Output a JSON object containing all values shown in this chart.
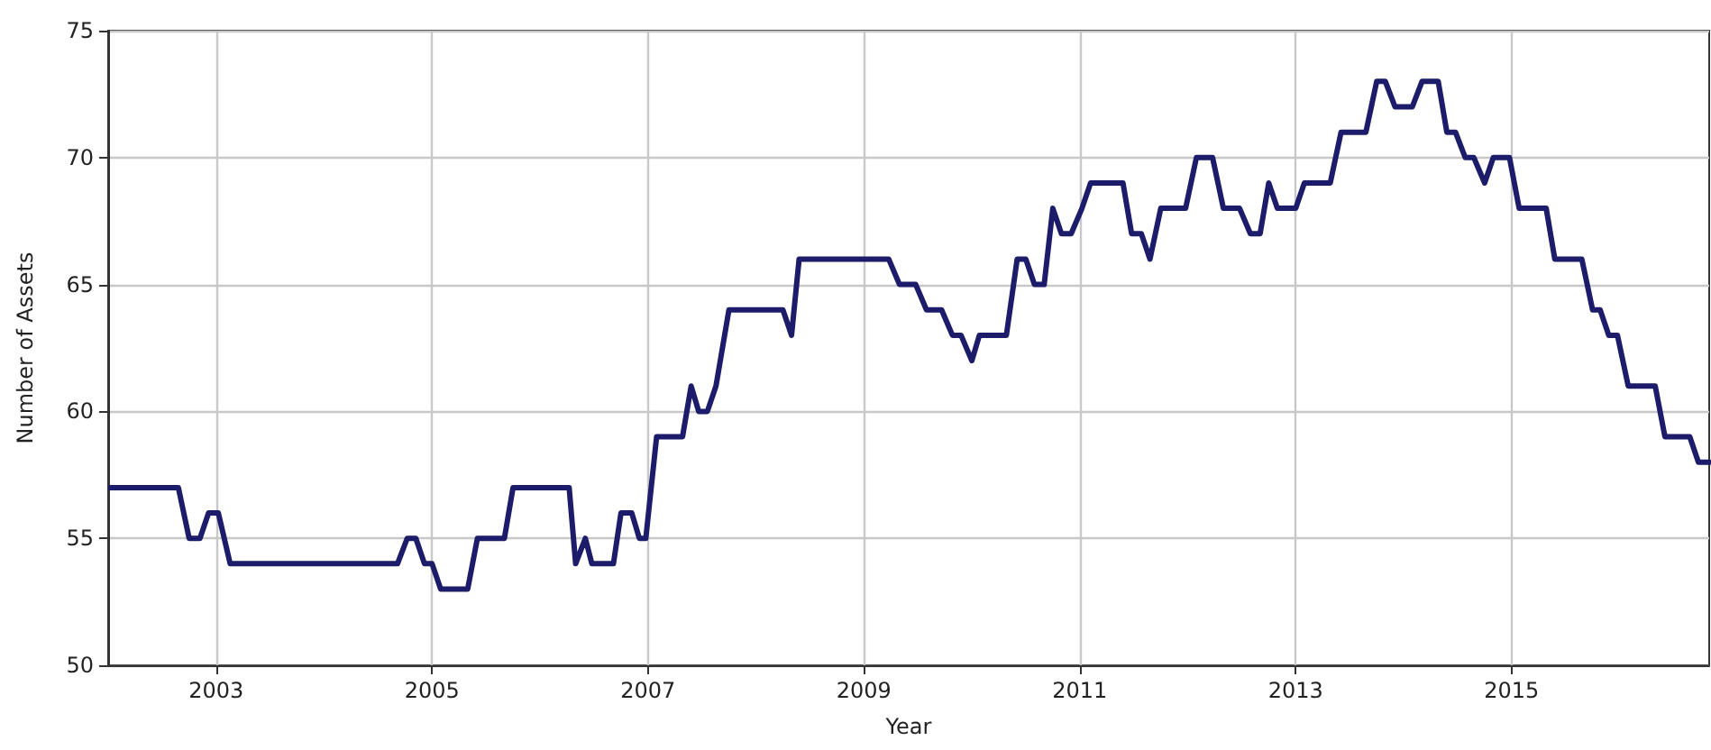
{
  "chart_data": {
    "type": "line",
    "xlabel": "Year",
    "ylabel": "Number of Assets",
    "xlim": [
      2002,
      2016.83
    ],
    "xticks": [
      2003,
      2005,
      2007,
      2009,
      2011,
      2013,
      2015
    ],
    "ylim": [
      50,
      75
    ],
    "yticks": [
      50,
      55,
      60,
      65,
      70,
      75
    ],
    "grid": true,
    "line_style": "solid",
    "marker": "none",
    "series": [
      {
        "color": "#1c1c6b",
        "x": [
          2002.02,
          2002.65,
          2002.75,
          2002.85,
          2002.93,
          2003.02,
          2003.13,
          2004.68,
          2004.77,
          2004.85,
          2004.93,
          2005.0,
          2005.08,
          2005.33,
          2005.42,
          2005.67,
          2005.75,
          2006.27,
          2006.33,
          2006.42,
          2006.48,
          2006.68,
          2006.75,
          2006.85,
          2006.92,
          2006.98,
          2007.08,
          2007.32,
          2007.4,
          2007.47,
          2007.55,
          2007.63,
          2007.75,
          2008.25,
          2008.33,
          2008.4,
          2009.23,
          2009.33,
          2009.48,
          2009.58,
          2009.72,
          2009.82,
          2009.9,
          2010.0,
          2010.07,
          2010.32,
          2010.42,
          2010.5,
          2010.58,
          2010.67,
          2010.75,
          2010.83,
          2010.92,
          2011.02,
          2011.1,
          2011.4,
          2011.48,
          2011.57,
          2011.65,
          2011.75,
          2011.98,
          2012.08,
          2012.23,
          2012.33,
          2012.48,
          2012.58,
          2012.67,
          2012.75,
          2012.83,
          2013.0,
          2013.08,
          2013.32,
          2013.42,
          2013.65,
          2013.75,
          2013.83,
          2013.92,
          2014.08,
          2014.17,
          2014.32,
          2014.4,
          2014.48,
          2014.57,
          2014.65,
          2014.75,
          2014.83,
          2014.98,
          2015.07,
          2015.32,
          2015.4,
          2015.65,
          2015.75,
          2015.82,
          2015.9,
          2015.98,
          2016.08,
          2016.33,
          2016.42,
          2016.65,
          2016.73,
          2016.83
        ],
        "values": [
          57,
          57,
          55,
          55,
          56,
          56,
          54,
          54,
          55,
          55,
          54,
          54,
          53,
          53,
          55,
          55,
          57,
          57,
          54,
          55,
          54,
          54,
          56,
          56,
          55,
          55,
          59,
          59,
          61,
          60,
          60,
          61,
          64,
          64,
          63,
          66,
          66,
          65,
          65,
          64,
          64,
          63,
          63,
          62,
          63,
          63,
          66,
          66,
          65,
          65,
          68,
          67,
          67,
          68,
          69,
          69,
          67,
          67,
          66,
          68,
          68,
          70,
          70,
          68,
          68,
          67,
          67,
          69,
          68,
          68,
          69,
          69,
          71,
          71,
          73,
          73,
          72,
          72,
          73,
          73,
          71,
          71,
          70,
          70,
          69,
          70,
          70,
          68,
          68,
          66,
          66,
          64,
          64,
          63,
          63,
          61,
          61,
          59,
          59,
          58,
          58
        ]
      }
    ]
  }
}
